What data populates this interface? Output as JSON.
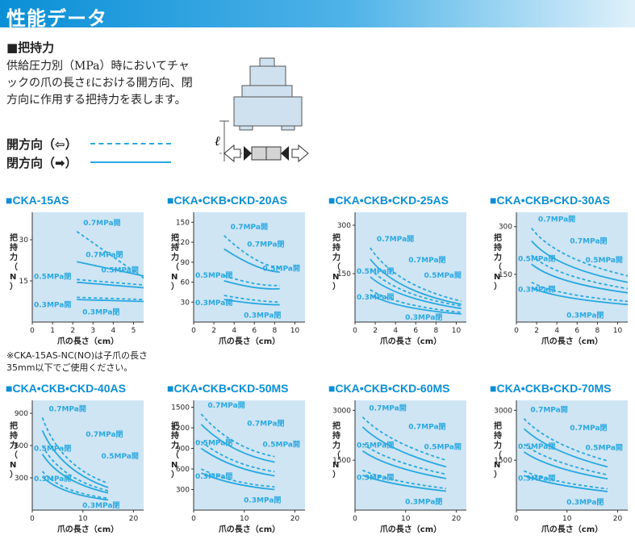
{
  "header": {
    "title": "性能データ"
  },
  "section": {
    "heading": "■把持力",
    "desc": "供給圧力別（MPa）時においてチャックの爪の長さℓにおける開方向、閉方向に作用する把持力を表します。",
    "legend_open": "開方向（⇦）",
    "legend_close": "閉方向（➡）"
  },
  "diagram": {
    "l_label": "ℓ"
  },
  "colors": {
    "curve": "#29a8e0",
    "bg": "#cfe5f4",
    "title": "#0a8fd6"
  },
  "note": "※CKA-15AS-NC(NO)は子爪の長さ35mm以下でご使用ください。",
  "chart_data": [
    {
      "type": "line",
      "title": "■CKA-15AS",
      "ylabel": "把持力（N）",
      "xlabel": "爪の長さ（cm）",
      "xlim": [
        0,
        5.5
      ],
      "ylim": [
        0,
        40
      ],
      "xticks": [
        0,
        1,
        2,
        3,
        4,
        5
      ],
      "yticks": [
        15,
        30
      ],
      "series": [
        {
          "name": "0.7MPa開",
          "style": "dash",
          "x": [
            2.2,
            5.5
          ],
          "y": [
            33,
            16
          ]
        },
        {
          "name": "0.7MPa閉",
          "style": "solid",
          "x": [
            2.2,
            5.5
          ],
          "y": [
            22,
            16.8
          ]
        },
        {
          "name": "0.5MPa開",
          "style": "dash",
          "x": [
            2.2,
            5.5
          ],
          "y": [
            15.5,
            13.5
          ]
        },
        {
          "name": "0.5MPa閉",
          "style": "solid",
          "x": [
            2.2,
            5.5
          ],
          "y": [
            14.5,
            12.5
          ]
        },
        {
          "name": "0.3MPa開",
          "style": "dash",
          "x": [
            2.2,
            5.5
          ],
          "y": [
            9,
            8.2
          ]
        },
        {
          "name": "0.3MPa閉",
          "style": "solid",
          "x": [
            2.2,
            5.5
          ],
          "y": [
            8.2,
            7.5
          ]
        }
      ]
    },
    {
      "type": "line",
      "title": "■CKA•CKB•CKD-20AS",
      "ylabel": "把持力（N）",
      "xlabel": "爪の長さ（cm）",
      "xlim": [
        0,
        11
      ],
      "ylim": [
        0,
        165
      ],
      "xticks": [
        0,
        2,
        4,
        6,
        8,
        10
      ],
      "yticks": [
        30,
        60,
        90,
        120,
        150
      ],
      "series": [
        {
          "name": "0.7MPa開",
          "style": "dash",
          "x": [
            3,
            6,
            8.5
          ],
          "y": [
            130,
            95,
            82
          ]
        },
        {
          "name": "0.7MPa閉",
          "style": "solid",
          "x": [
            3,
            6,
            8.5
          ],
          "y": [
            110,
            85,
            75
          ]
        },
        {
          "name": "0.5MPa開",
          "style": "dash",
          "x": [
            3,
            6,
            8.5
          ],
          "y": [
            70,
            58,
            55
          ]
        },
        {
          "name": "0.5MPa閉",
          "style": "solid",
          "x": [
            3,
            6,
            8.5
          ],
          "y": [
            62,
            52,
            50
          ]
        },
        {
          "name": "0.3MPa開",
          "style": "dash",
          "x": [
            3,
            6,
            8.5
          ],
          "y": [
            40,
            33,
            30
          ]
        },
        {
          "name": "0.3MPa閉",
          "style": "solid",
          "x": [
            3,
            6,
            8.5
          ],
          "y": [
            34,
            28,
            26
          ]
        }
      ]
    },
    {
      "type": "line",
      "title": "■CKA•CKB•CKD-25AS",
      "ylabel": "把持力（N）",
      "xlabel": "爪の長さ（cm）",
      "xlim": [
        0,
        11
      ],
      "ylim": [
        0,
        340
      ],
      "xticks": [
        0,
        2,
        4,
        6,
        8,
        10
      ],
      "yticks": [
        150,
        300
      ],
      "series": [
        {
          "name": "0.7MPa開",
          "style": "dash",
          "x": [
            1.5,
            5,
            10.5
          ],
          "y": [
            230,
            130,
            65
          ]
        },
        {
          "name": "0.7MPa閉",
          "style": "solid",
          "x": [
            1.5,
            5,
            10.5
          ],
          "y": [
            195,
            110,
            55
          ]
        },
        {
          "name": "0.5MPa開",
          "style": "dash",
          "x": [
            1.5,
            5,
            10.5
          ],
          "y": [
            165,
            95,
            50
          ]
        },
        {
          "name": "0.5MPa閉",
          "style": "solid",
          "x": [
            1.5,
            5,
            10.5
          ],
          "y": [
            140,
            82,
            42
          ]
        },
        {
          "name": "0.3MPa開",
          "style": "dash",
          "x": [
            1.5,
            5,
            10.5
          ],
          "y": [
            100,
            58,
            30
          ]
        },
        {
          "name": "0.3MPa閉",
          "style": "solid",
          "x": [
            1.5,
            5,
            10.5
          ],
          "y": [
            85,
            48,
            25
          ]
        }
      ]
    },
    {
      "type": "line",
      "title": "■CKA•CKB•CKD-30AS",
      "ylabel": "把持力（N）",
      "xlabel": "爪の長さ（cm）",
      "xlim": [
        0,
        11
      ],
      "ylim": [
        0,
        345
      ],
      "xticks": [
        0,
        2,
        4,
        6,
        8,
        10
      ],
      "yticks": [
        150,
        300
      ],
      "series": [
        {
          "name": "0.7MPa開",
          "style": "dash",
          "x": [
            1.5,
            5,
            11
          ],
          "y": [
            295,
            210,
            145
          ]
        },
        {
          "name": "0.7MPa閉",
          "style": "solid",
          "x": [
            1.5,
            5,
            11
          ],
          "y": [
            255,
            180,
            125
          ]
        },
        {
          "name": "0.5MPa開",
          "style": "dash",
          "x": [
            1.5,
            5,
            11
          ],
          "y": [
            210,
            150,
            105
          ]
        },
        {
          "name": "0.5MPa閉",
          "style": "solid",
          "x": [
            1.5,
            5,
            11
          ],
          "y": [
            182,
            130,
            92
          ]
        },
        {
          "name": "0.3MPa開",
          "style": "dash",
          "x": [
            1.5,
            5,
            11
          ],
          "y": [
            125,
            90,
            65
          ]
        },
        {
          "name": "0.3MPa閉",
          "style": "solid",
          "x": [
            1.5,
            5,
            11
          ],
          "y": [
            108,
            78,
            55
          ]
        }
      ]
    },
    {
      "type": "line",
      "title": "■CKA•CKB•CKD-40AS",
      "ylabel": "把持力（N）",
      "xlabel": "爪の長さ（cm）",
      "xlim": [
        0,
        22
      ],
      "ylim": [
        0,
        1020
      ],
      "xticks": [
        0,
        10,
        20
      ],
      "yticks": [
        300,
        600,
        900
      ],
      "series": [
        {
          "name": "0.7MPa開",
          "style": "dash",
          "x": [
            2,
            7,
            15
          ],
          "y": [
            860,
            480,
            250
          ]
        },
        {
          "name": "0.7MPa閉",
          "style": "solid",
          "x": [
            2,
            7,
            15
          ],
          "y": [
            740,
            420,
            210
          ]
        },
        {
          "name": "0.5MPa開",
          "style": "dash",
          "x": [
            2,
            7,
            15
          ],
          "y": [
            600,
            340,
            180
          ]
        },
        {
          "name": "0.5MPa閉",
          "style": "solid",
          "x": [
            2,
            7,
            15
          ],
          "y": [
            520,
            300,
            160
          ]
        },
        {
          "name": "0.3MPa開",
          "style": "dash",
          "x": [
            2,
            7,
            15
          ],
          "y": [
            360,
            200,
            110
          ]
        },
        {
          "name": "0.3MPa閉",
          "style": "solid",
          "x": [
            2,
            7,
            15
          ],
          "y": [
            310,
            175,
            95
          ]
        }
      ]
    },
    {
      "type": "line",
      "title": "■CKA•CKB•CKD-50MS",
      "ylabel": "把持力（N）",
      "xlabel": "爪の長さ（cm）",
      "xlim": [
        0,
        22
      ],
      "ylim": [
        0,
        1600
      ],
      "xticks": [
        0,
        10,
        20
      ],
      "yticks": [
        300,
        600,
        900,
        1200,
        1500
      ],
      "series": [
        {
          "name": "0.7MPa開",
          "style": "dash",
          "x": [
            1.5,
            8,
            16
          ],
          "y": [
            1400,
            1000,
            780
          ]
        },
        {
          "name": "0.7MPa閉",
          "style": "solid",
          "x": [
            1.5,
            8,
            16
          ],
          "y": [
            1250,
            900,
            700
          ]
        },
        {
          "name": "0.5MPa開",
          "style": "dash",
          "x": [
            1.5,
            8,
            16
          ],
          "y": [
            1000,
            720,
            560
          ]
        },
        {
          "name": "0.5MPa閉",
          "style": "solid",
          "x": [
            1.5,
            8,
            16
          ],
          "y": [
            900,
            650,
            500
          ]
        },
        {
          "name": "0.3MPa開",
          "style": "dash",
          "x": [
            1.5,
            8,
            16
          ],
          "y": [
            600,
            430,
            340
          ]
        },
        {
          "name": "0.3MPa閉",
          "style": "solid",
          "x": [
            1.5,
            8,
            16
          ],
          "y": [
            540,
            390,
            300
          ]
        }
      ]
    },
    {
      "type": "line",
      "title": "■CKA•CKB•CKD-60MS",
      "ylabel": "把持力（N）",
      "xlabel": "爪の長さ（cm）",
      "xlim": [
        0,
        22
      ],
      "ylim": [
        0,
        3300
      ],
      "xticks": [
        0,
        10,
        20
      ],
      "yticks": [
        1500,
        3000
      ],
      "series": [
        {
          "name": "0.7MPa開",
          "style": "dash",
          "x": [
            1.5,
            8,
            18
          ],
          "y": [
            2800,
            2100,
            1500
          ]
        },
        {
          "name": "0.7MPa閉",
          "style": "solid",
          "x": [
            1.5,
            8,
            18
          ],
          "y": [
            2500,
            1850,
            1300
          ]
        },
        {
          "name": "0.5MPa開",
          "style": "dash",
          "x": [
            1.5,
            8,
            18
          ],
          "y": [
            2000,
            1500,
            1080
          ]
        },
        {
          "name": "0.5MPa閉",
          "style": "solid",
          "x": [
            1.5,
            8,
            18
          ],
          "y": [
            1780,
            1320,
            950
          ]
        },
        {
          "name": "0.3MPa開",
          "style": "dash",
          "x": [
            1.5,
            8,
            18
          ],
          "y": [
            1200,
            900,
            650
          ]
        },
        {
          "name": "0.3MPa閉",
          "style": "solid",
          "x": [
            1.5,
            8,
            18
          ],
          "y": [
            1050,
            790,
            570
          ]
        }
      ]
    },
    {
      "type": "line",
      "title": "■CKA•CKB•CKD-70MS",
      "ylabel": "把持力（N）",
      "xlabel": "爪の長さ（cm）",
      "xlim": [
        0,
        22
      ],
      "ylim": [
        0,
        3300
      ],
      "xticks": [
        0,
        10,
        20
      ],
      "yticks": [
        1500,
        3000
      ],
      "series": [
        {
          "name": "0.7MPa開",
          "style": "dash",
          "x": [
            1.5,
            8,
            18
          ],
          "y": [
            2750,
            2050,
            1480
          ]
        },
        {
          "name": "0.7MPa閉",
          "style": "solid",
          "x": [
            1.5,
            8,
            18
          ],
          "y": [
            2450,
            1820,
            1300
          ]
        },
        {
          "name": "0.5MPa開",
          "style": "dash",
          "x": [
            1.5,
            8,
            18
          ],
          "y": [
            1980,
            1480,
            1060
          ]
        },
        {
          "name": "0.5MPa閉",
          "style": "solid",
          "x": [
            1.5,
            8,
            18
          ],
          "y": [
            1750,
            1300,
            940
          ]
        },
        {
          "name": "0.3MPa開",
          "style": "dash",
          "x": [
            1.5,
            8,
            18
          ],
          "y": [
            1180,
            880,
            640
          ]
        },
        {
          "name": "0.3MPa閉",
          "style": "solid",
          "x": [
            1.5,
            8,
            18
          ],
          "y": [
            1040,
            780,
            560
          ]
        }
      ]
    }
  ]
}
